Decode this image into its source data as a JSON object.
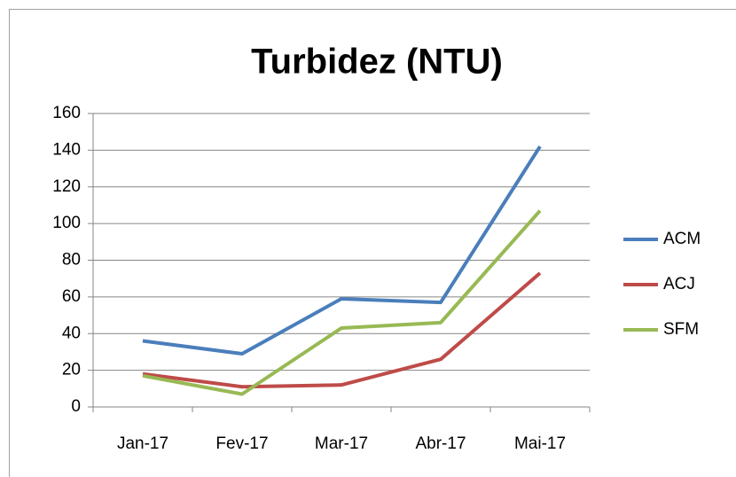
{
  "chart_data": {
    "type": "line",
    "title": "Turbidez (NTU)",
    "categories": [
      "Jan-17",
      "Fev-17",
      "Mar-17",
      "Abr-17",
      "Mai-17"
    ],
    "series": [
      {
        "name": "ACM",
        "color": "#4a7ebb",
        "values": [
          36,
          29,
          59,
          57,
          142
        ]
      },
      {
        "name": "ACJ",
        "color": "#be4b48",
        "values": [
          18,
          11,
          12,
          26,
          73
        ]
      },
      {
        "name": "SFM",
        "color": "#98b954",
        "values": [
          17,
          7,
          43,
          46,
          107
        ]
      }
    ],
    "ylim": [
      0,
      160
    ],
    "yticks": [
      0,
      20,
      40,
      60,
      80,
      100,
      120,
      140,
      160
    ],
    "grid": true,
    "legend": "right"
  }
}
